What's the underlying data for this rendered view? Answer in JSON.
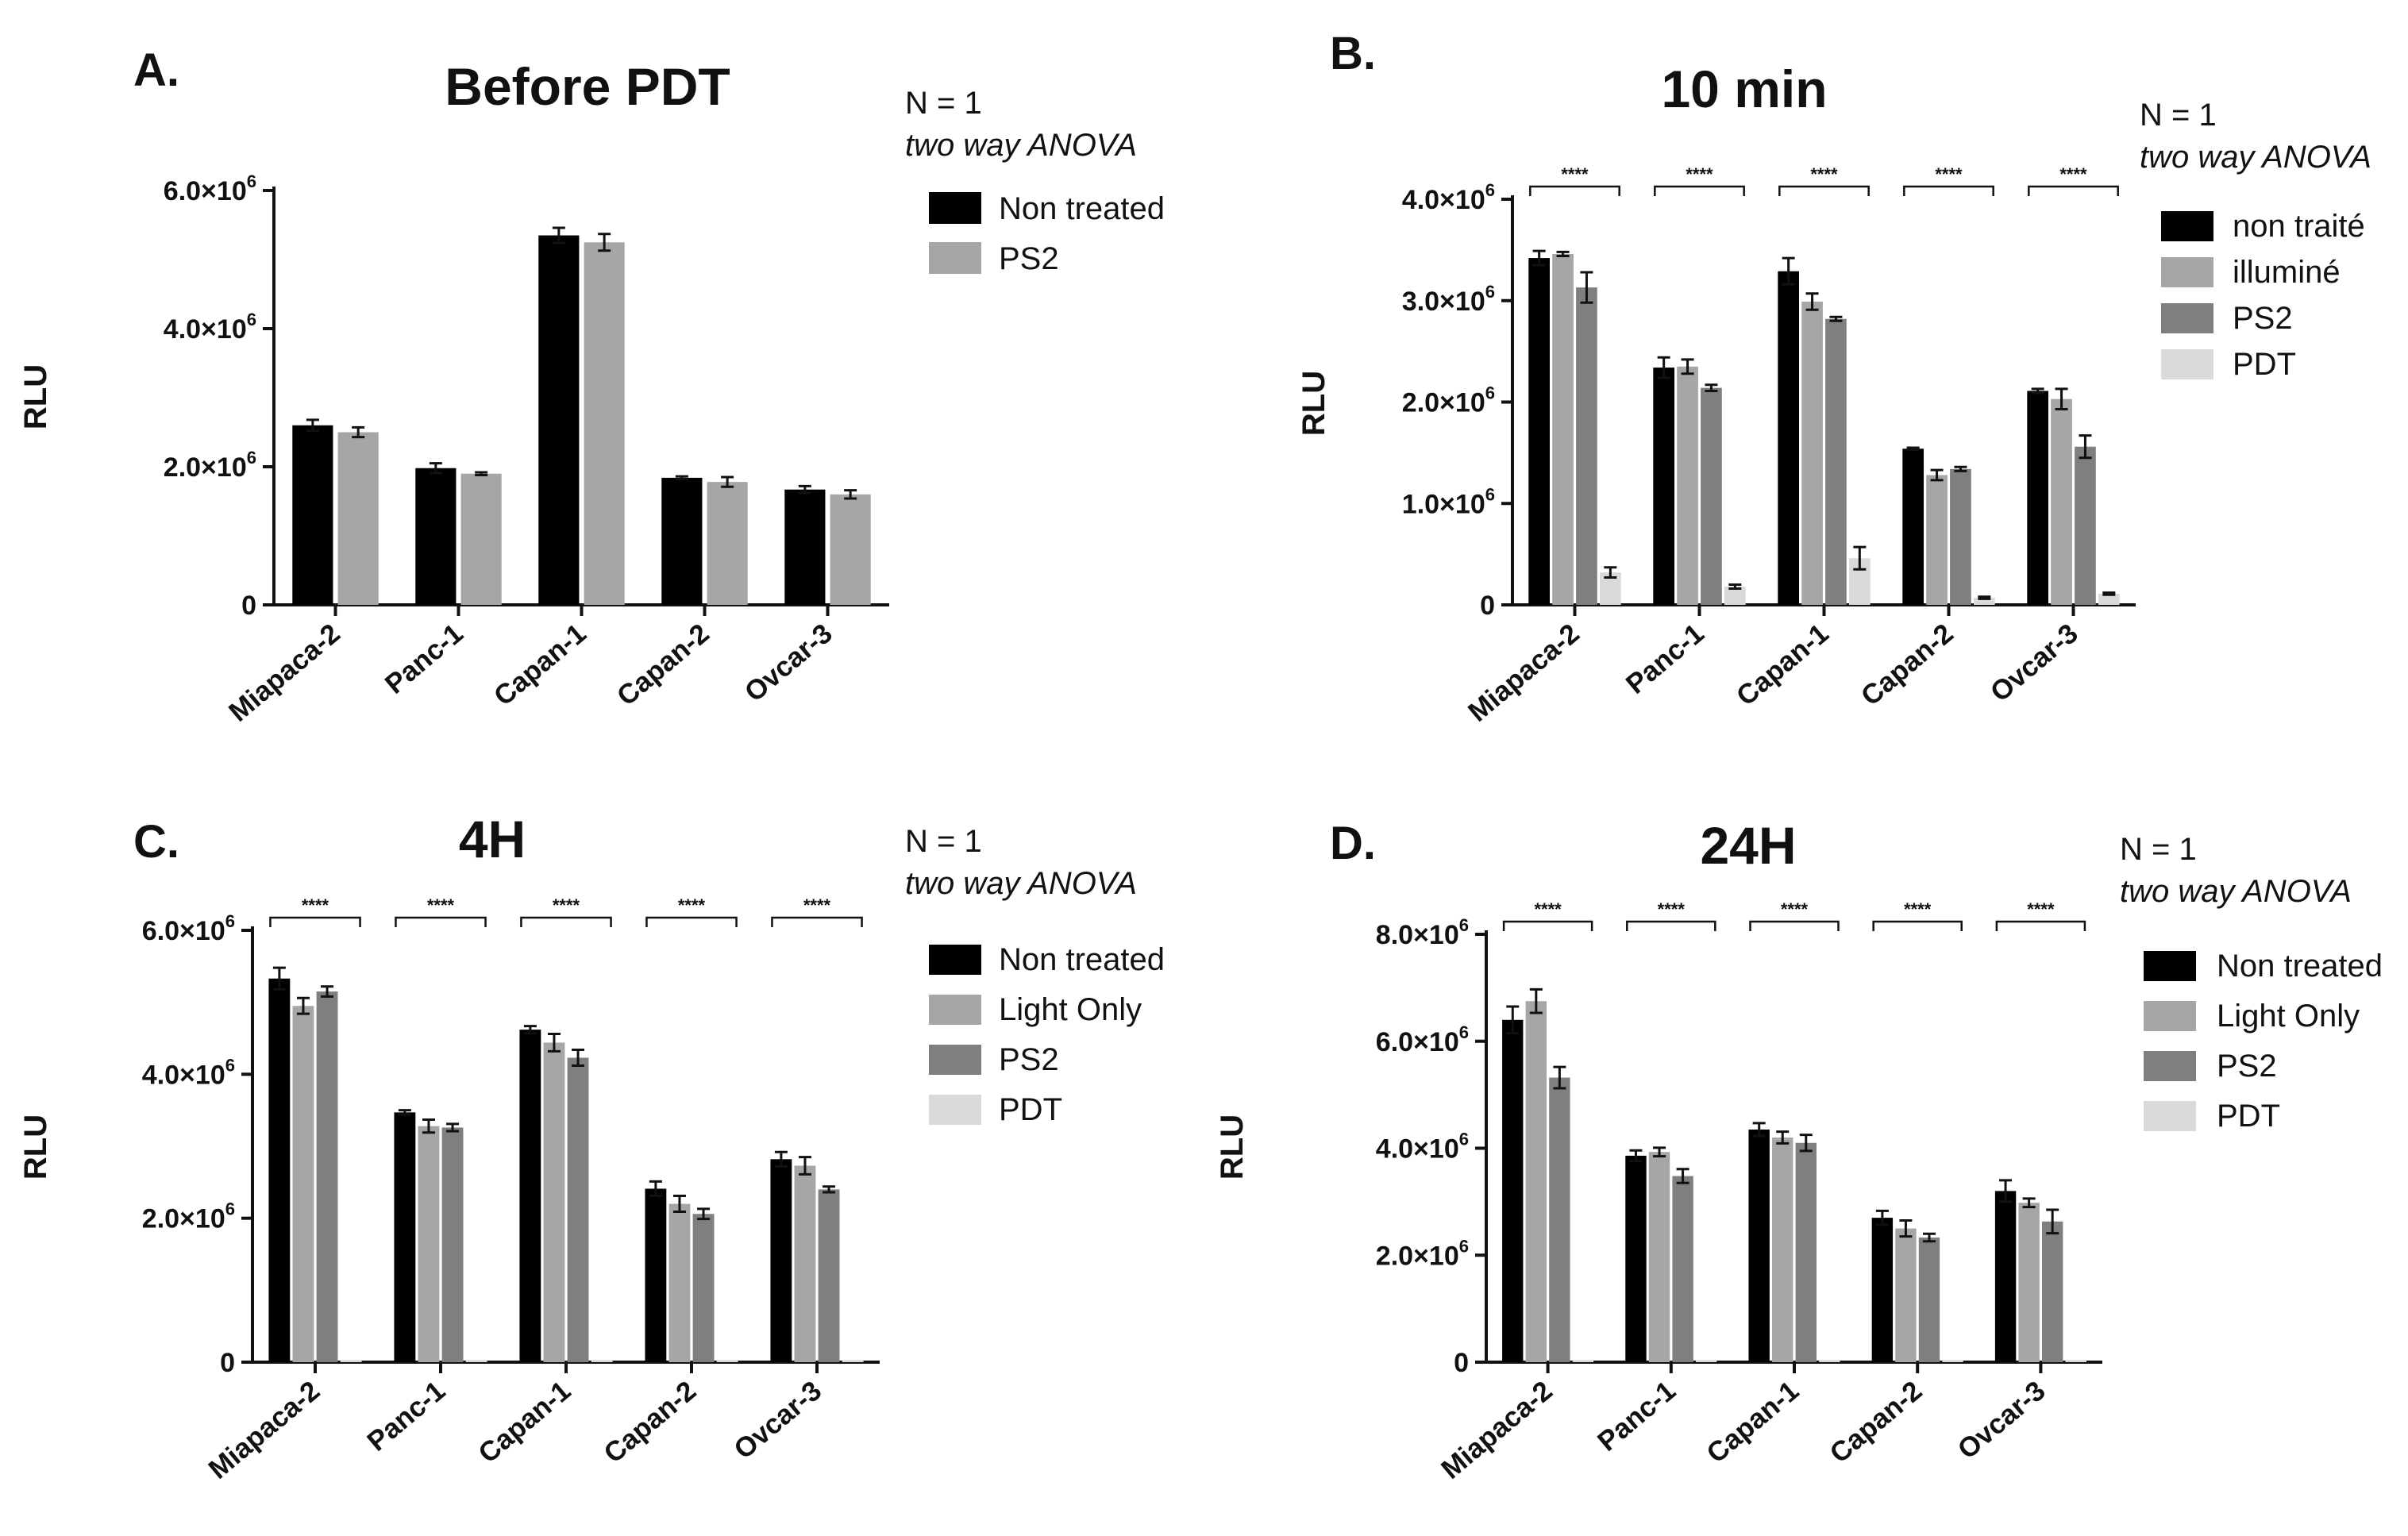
{
  "chart_data": [
    {
      "type": "bar",
      "panel": "A.",
      "title": "Before PDT",
      "ylabel": "RLU",
      "xlabel": "",
      "ylim": [
        0,
        6000000
      ],
      "yticks": [
        {
          "value": 0,
          "mant": "0",
          "exp": ""
        },
        {
          "value": 2000000,
          "mant": "2.0×10",
          "exp": "6"
        },
        {
          "value": 4000000,
          "mant": "4.0×10",
          "exp": "6"
        },
        {
          "value": 6000000,
          "mant": "6.0×10",
          "exp": "6"
        }
      ],
      "categories": [
        "Miapaca-2",
        "Panc-1",
        "Capan-1",
        "Capan-2",
        "Ovcar-3"
      ],
      "series": [
        {
          "name": "Non treated",
          "color": "#000000",
          "values": [
            2600000,
            1980000,
            5350000,
            1840000,
            1670000
          ],
          "errors": [
            80000,
            70000,
            110000,
            20000,
            50000
          ]
        },
        {
          "name": "PS2",
          "color": "#a6a6a6",
          "values": [
            2500000,
            1900000,
            5250000,
            1780000,
            1600000
          ],
          "errors": [
            70000,
            20000,
            120000,
            70000,
            60000
          ]
        }
      ],
      "notes": {
        "n": "N = 1",
        "test": "two way ANOVA"
      },
      "significance": []
    },
    {
      "type": "bar",
      "panel": "B.",
      "title": "10 min",
      "ylabel": "RLU",
      "xlabel": "",
      "ylim": [
        0,
        4000000
      ],
      "yticks": [
        {
          "value": 0,
          "mant": "0",
          "exp": ""
        },
        {
          "value": 1000000,
          "mant": "1.0×10",
          "exp": "6"
        },
        {
          "value": 2000000,
          "mant": "2.0×10",
          "exp": "6"
        },
        {
          "value": 3000000,
          "mant": "3.0×10",
          "exp": "6"
        },
        {
          "value": 4000000,
          "mant": "4.0×10",
          "exp": "6"
        }
      ],
      "categories": [
        "Miapaca-2",
        "Panc-1",
        "Capan-1",
        "Capan-2",
        "Ovcar-3"
      ],
      "series": [
        {
          "name": "non traité",
          "color": "#000000",
          "values": [
            3420000,
            2340000,
            3290000,
            1540000,
            2110000
          ],
          "errors": [
            70000,
            100000,
            130000,
            10000,
            20000
          ]
        },
        {
          "name": "illuminé",
          "color": "#a6a6a6",
          "values": [
            3460000,
            2350000,
            2990000,
            1280000,
            2030000
          ],
          "errors": [
            20000,
            70000,
            80000,
            50000,
            100000
          ]
        },
        {
          "name": "PS2",
          "color": "#7f7f7f",
          "values": [
            3130000,
            2140000,
            2820000,
            1340000,
            1560000
          ],
          "errors": [
            150000,
            30000,
            20000,
            20000,
            110000
          ]
        },
        {
          "name": "PDT",
          "color": "#d9d9d9",
          "values": [
            320000,
            180000,
            460000,
            70000,
            110000
          ],
          "errors": [
            50000,
            20000,
            110000,
            10000,
            10000
          ]
        }
      ],
      "notes": {
        "n": "N = 1",
        "test": "two way ANOVA"
      },
      "significance": [
        "****",
        "****",
        "****",
        "****",
        "****"
      ]
    },
    {
      "type": "bar",
      "panel": "C.",
      "title": "4H",
      "ylabel": "RLU",
      "xlabel": "",
      "ylim": [
        0,
        6000000
      ],
      "yticks": [
        {
          "value": 0,
          "mant": "0",
          "exp": ""
        },
        {
          "value": 2000000,
          "mant": "2.0×10",
          "exp": "6"
        },
        {
          "value": 4000000,
          "mant": "4.0×10",
          "exp": "6"
        },
        {
          "value": 6000000,
          "mant": "6.0×10",
          "exp": "6"
        }
      ],
      "categories": [
        "Miapaca-2",
        "Panc-1",
        "Capan-1",
        "Capan-2",
        "Ovcar-3"
      ],
      "series": [
        {
          "name": "Non treated",
          "color": "#000000",
          "values": [
            5330000,
            3470000,
            4620000,
            2410000,
            2820000
          ],
          "errors": [
            150000,
            30000,
            50000,
            100000,
            100000
          ]
        },
        {
          "name": "Light Only",
          "color": "#a6a6a6",
          "values": [
            4950000,
            3280000,
            4440000,
            2200000,
            2730000
          ],
          "errors": [
            110000,
            90000,
            120000,
            110000,
            120000
          ]
        },
        {
          "name": "PS2",
          "color": "#7f7f7f",
          "values": [
            5150000,
            3260000,
            4230000,
            2060000,
            2400000
          ],
          "errors": [
            70000,
            50000,
            110000,
            70000,
            40000
          ]
        },
        {
          "name": "PDT",
          "color": "#d9d9d9",
          "values": [
            30000,
            30000,
            30000,
            30000,
            30000
          ],
          "errors": [
            0,
            0,
            0,
            0,
            0
          ]
        }
      ],
      "notes": {
        "n": "N = 1",
        "test": "two way ANOVA"
      },
      "significance": [
        "****",
        "****",
        "****",
        "****",
        "****"
      ]
    },
    {
      "type": "bar",
      "panel": "D.",
      "title": "24H",
      "ylabel": "RLU",
      "xlabel": "",
      "ylim": [
        0,
        8000000
      ],
      "yticks": [
        {
          "value": 0,
          "mant": "0",
          "exp": ""
        },
        {
          "value": 2000000,
          "mant": "2.0×10",
          "exp": "6"
        },
        {
          "value": 4000000,
          "mant": "4.0×10",
          "exp": "6"
        },
        {
          "value": 6000000,
          "mant": "6.0×10",
          "exp": "6"
        },
        {
          "value": 8000000,
          "mant": "8.0×10",
          "exp": "6"
        }
      ],
      "categories": [
        "Miapaca-2",
        "Panc-1",
        "Capan-1",
        "Capan-2",
        "Ovcar-3"
      ],
      "series": [
        {
          "name": "Non treated",
          "color": "#000000",
          "values": [
            6400000,
            3860000,
            4350000,
            2700000,
            3200000
          ],
          "errors": [
            250000,
            100000,
            120000,
            130000,
            200000
          ]
        },
        {
          "name": "Light Only",
          "color": "#a6a6a6",
          "values": [
            6750000,
            3930000,
            4200000,
            2500000,
            2980000
          ],
          "errors": [
            220000,
            80000,
            110000,
            150000,
            80000
          ]
        },
        {
          "name": "PS2",
          "color": "#7f7f7f",
          "values": [
            5320000,
            3480000,
            4100000,
            2330000,
            2630000
          ],
          "errors": [
            200000,
            130000,
            150000,
            70000,
            220000
          ]
        },
        {
          "name": "PDT",
          "color": "#d9d9d9",
          "values": [
            40000,
            40000,
            40000,
            40000,
            40000
          ],
          "errors": [
            0,
            0,
            0,
            0,
            0
          ]
        }
      ],
      "notes": {
        "n": "N = 1",
        "test": "two way ANOVA"
      },
      "significance": [
        "****",
        "****",
        "****",
        "****",
        "****"
      ]
    }
  ]
}
